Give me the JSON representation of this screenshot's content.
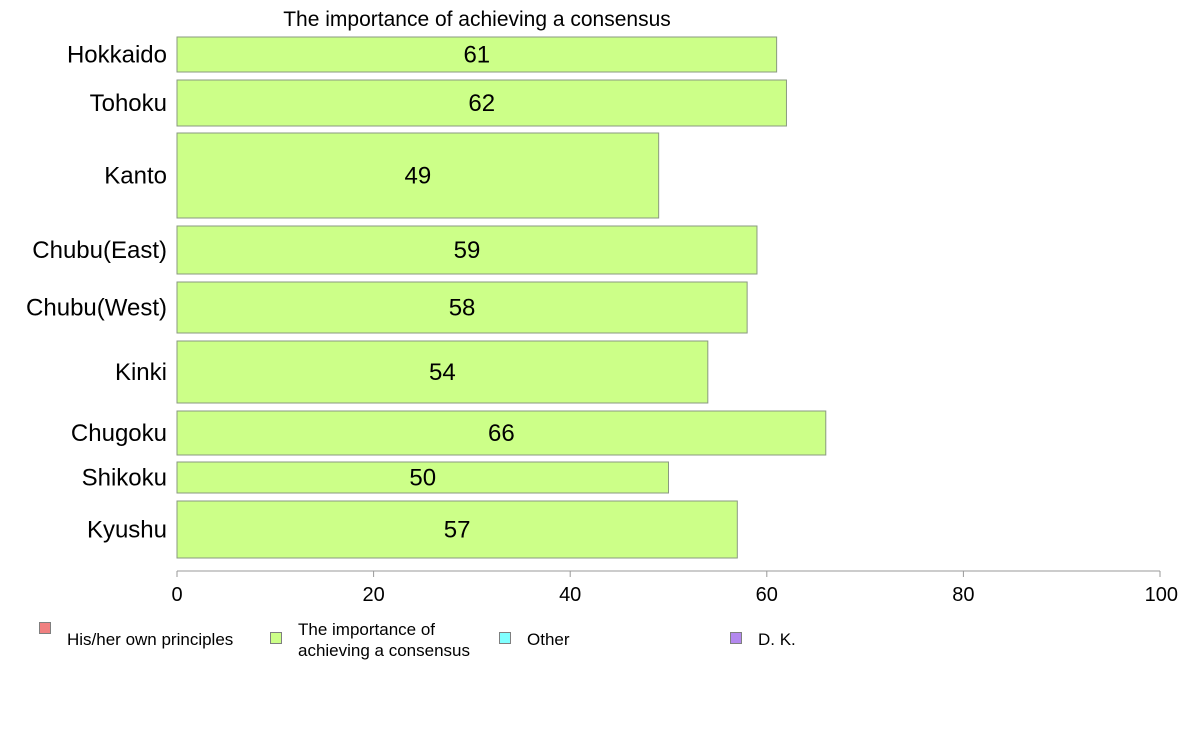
{
  "chart_data": {
    "type": "bar",
    "orientation": "horizontal",
    "title": "The importance of achieving a consensus",
    "categories": [
      "Hokkaido",
      "Tohoku",
      "Kanto",
      "Chubu(East)",
      "Chubu(West)",
      "Kinki",
      "Chugoku",
      "Shikoku",
      "Kyushu"
    ],
    "values": [
      61,
      62,
      49,
      59,
      58,
      54,
      66,
      50,
      57
    ],
    "data_labels": [
      "61",
      "62",
      "49",
      "59",
      "58",
      "54",
      "66",
      "50",
      "57"
    ],
    "xlim": [
      0,
      100
    ],
    "xticks": [
      "0",
      "20",
      "40",
      "60",
      "80",
      "100"
    ],
    "bar_color": "#ccff88",
    "grid": false,
    "legend_position": "bottom",
    "legend": [
      {
        "label": "His/her own principles",
        "color": "#f08080"
      },
      {
        "label": "The importance of\nachieving a consensus",
        "color": "#ccff88"
      },
      {
        "label": "Other",
        "color": "#80ffff"
      },
      {
        "label": "D. K.",
        "color": "#b388ee"
      }
    ]
  }
}
